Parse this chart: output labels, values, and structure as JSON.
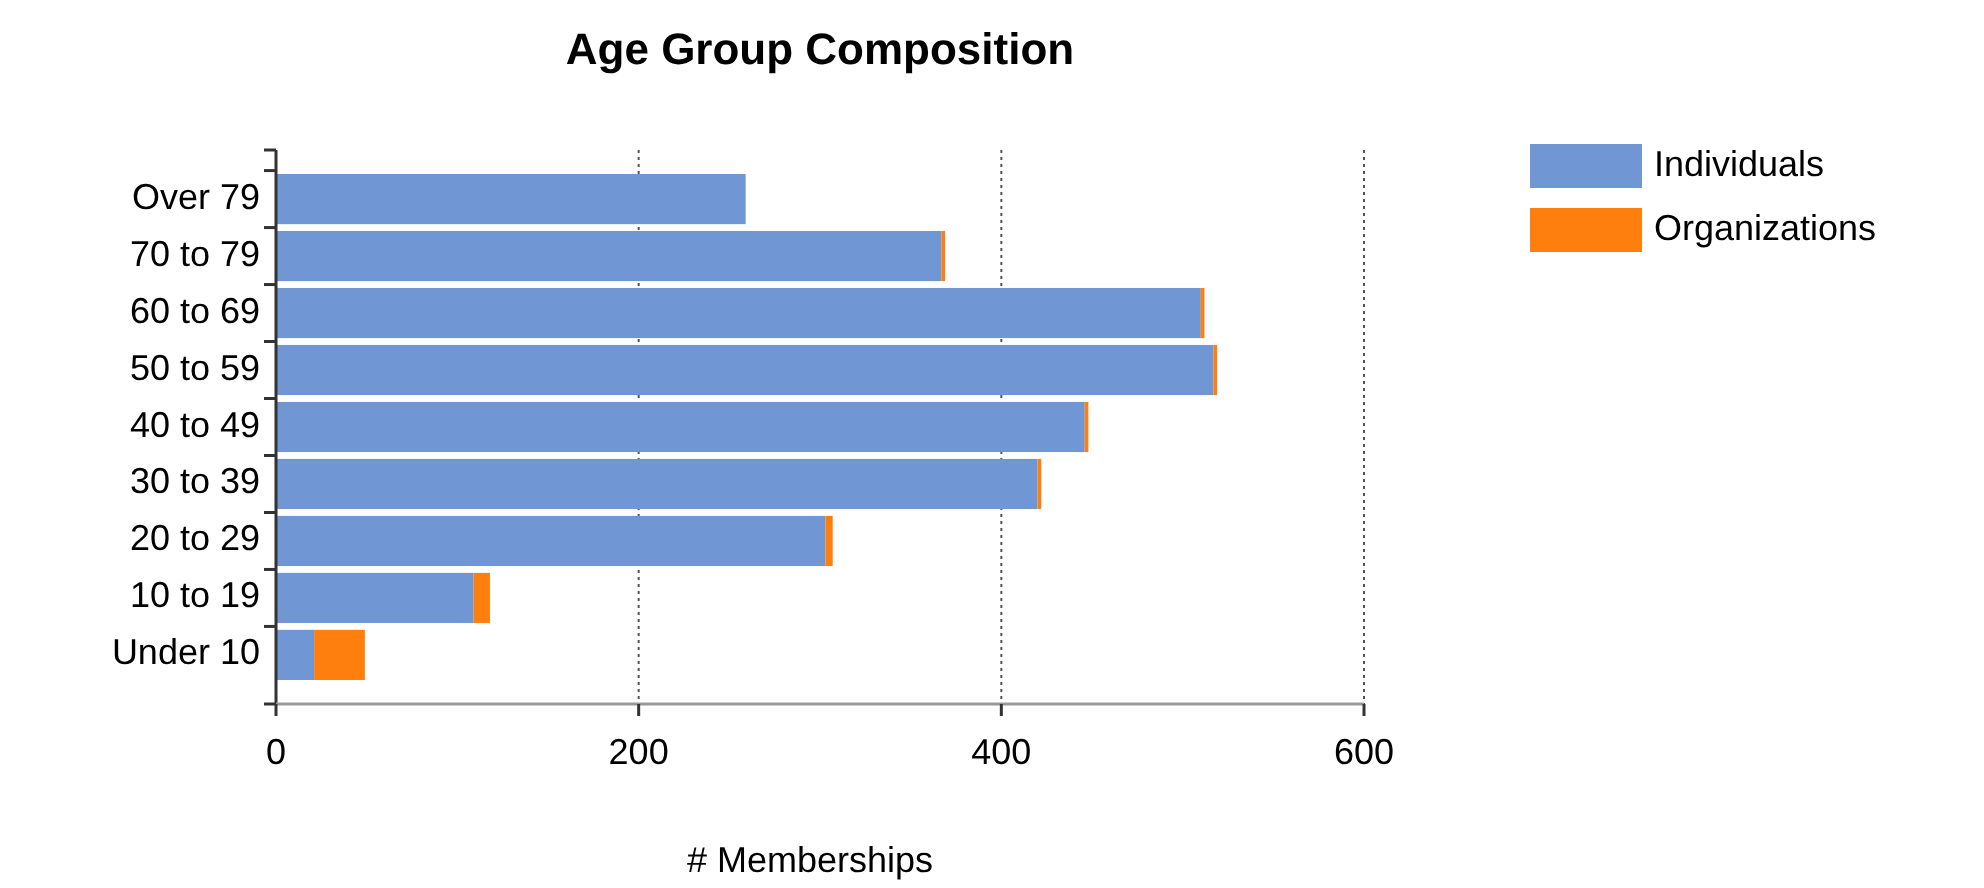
{
  "chart_data": {
    "type": "bar",
    "title": "Age Group Composition",
    "xlabel": "# Memberships",
    "orientation": "horizontal",
    "stacked": true,
    "categories": [
      "Over 79",
      "70 to 79",
      "60 to 69",
      "50 to 59",
      "40 to 49",
      "30 to 39",
      "20 to 29",
      "10 to 19",
      "Under 10"
    ],
    "series": [
      {
        "name": "Individuals",
        "color": "#7097d4",
        "values": [
          259,
          367,
          510,
          517,
          446,
          420,
          303,
          109,
          21
        ]
      },
      {
        "name": "Organizations",
        "color": "#ff7f0e",
        "values": [
          0,
          2,
          2,
          2,
          2,
          2,
          4,
          9,
          28
        ]
      }
    ],
    "xlim": [
      0,
      600
    ],
    "xticks": [
      0,
      200,
      400,
      600
    ],
    "grid": "x",
    "legend": "top right"
  }
}
